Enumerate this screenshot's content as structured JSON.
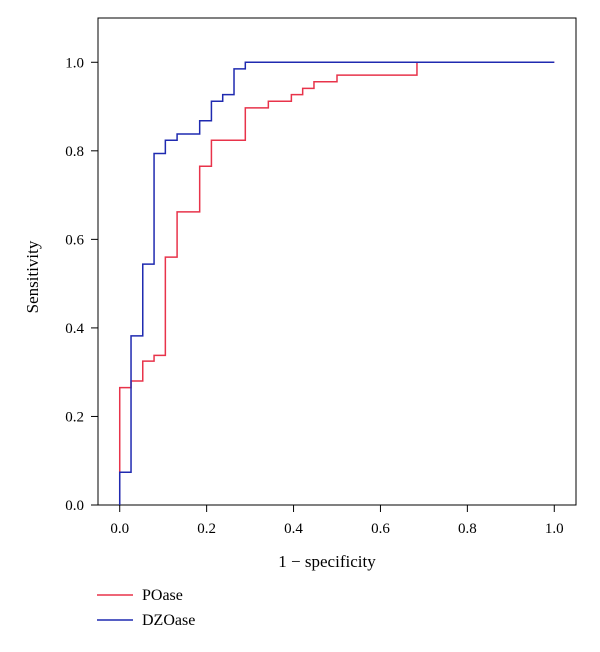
{
  "chart_data": {
    "type": "line",
    "title": "",
    "xlabel": "1 − specificity",
    "ylabel": "Sensitivity",
    "xlim": [
      -0.05,
      1.05
    ],
    "ylim": [
      0.0,
      1.1
    ],
    "xticks": [
      0.0,
      0.2,
      0.4,
      0.6,
      0.8,
      1.0
    ],
    "yticks": [
      0.0,
      0.2,
      0.4,
      0.6,
      0.8,
      1.0
    ],
    "xtick_labels": [
      "0.0",
      "0.2",
      "0.4",
      "0.6",
      "0.8",
      "1.0"
    ],
    "ytick_labels": [
      "0.0",
      "0.2",
      "0.4",
      "0.6",
      "0.8",
      "1.0"
    ],
    "grid": false,
    "legend_position": "below-left",
    "series": [
      {
        "name": "POase",
        "color": "#e8334a",
        "step_points": [
          [
            0.0,
            0.0
          ],
          [
            0.0,
            0.265
          ],
          [
            0.026,
            0.265
          ],
          [
            0.026,
            0.28
          ],
          [
            0.053,
            0.28
          ],
          [
            0.053,
            0.325
          ],
          [
            0.079,
            0.325
          ],
          [
            0.079,
            0.338
          ],
          [
            0.105,
            0.338
          ],
          [
            0.105,
            0.56
          ],
          [
            0.132,
            0.56
          ],
          [
            0.132,
            0.662
          ],
          [
            0.184,
            0.662
          ],
          [
            0.184,
            0.765
          ],
          [
            0.211,
            0.765
          ],
          [
            0.211,
            0.824
          ],
          [
            0.289,
            0.824
          ],
          [
            0.289,
            0.897
          ],
          [
            0.342,
            0.897
          ],
          [
            0.342,
            0.912
          ],
          [
            0.395,
            0.912
          ],
          [
            0.395,
            0.927
          ],
          [
            0.421,
            0.927
          ],
          [
            0.421,
            0.941
          ],
          [
            0.447,
            0.941
          ],
          [
            0.447,
            0.956
          ],
          [
            0.5,
            0.956
          ],
          [
            0.5,
            0.971
          ],
          [
            0.684,
            0.971
          ],
          [
            0.684,
            1.0
          ],
          [
            1.0,
            1.0
          ]
        ]
      },
      {
        "name": "DZOase",
        "color": "#1f2ab0",
        "step_points": [
          [
            0.0,
            0.0
          ],
          [
            0.0,
            0.074
          ],
          [
            0.026,
            0.074
          ],
          [
            0.026,
            0.382
          ],
          [
            0.053,
            0.382
          ],
          [
            0.053,
            0.544
          ],
          [
            0.079,
            0.544
          ],
          [
            0.079,
            0.794
          ],
          [
            0.105,
            0.794
          ],
          [
            0.105,
            0.824
          ],
          [
            0.132,
            0.824
          ],
          [
            0.132,
            0.838
          ],
          [
            0.184,
            0.838
          ],
          [
            0.184,
            0.868
          ],
          [
            0.211,
            0.868
          ],
          [
            0.211,
            0.912
          ],
          [
            0.237,
            0.912
          ],
          [
            0.237,
            0.927
          ],
          [
            0.263,
            0.927
          ],
          [
            0.263,
            0.985
          ],
          [
            0.289,
            0.985
          ],
          [
            0.289,
            1.0
          ],
          [
            1.0,
            1.0
          ]
        ]
      }
    ]
  }
}
